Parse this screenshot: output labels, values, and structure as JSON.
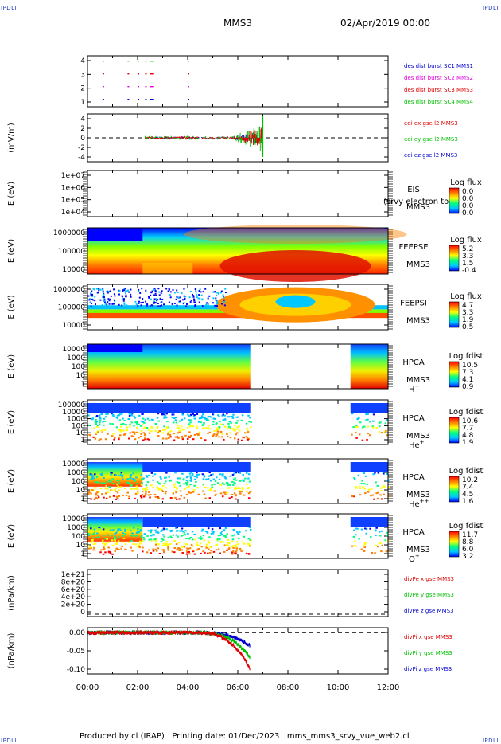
{
  "corners": {
    "tl": "IPDLI",
    "tr": "IPDLI",
    "bl": "IPDLI",
    "br": "IPDLI"
  },
  "header": {
    "spacecraft": "MMS3",
    "date": "02/Apr/2019 00:00"
  },
  "footer": {
    "text": "Produced by cl (IRAP)   Printing date: 01/Dec/2023   mms_mms3_srvy_vue_web2.cl"
  },
  "colors": {
    "red": "#e00000",
    "green": "#00c000",
    "blue": "#0000d0",
    "magenta": "#e000e0",
    "colorbar": [
      "#0000ff",
      "#00c8ff",
      "#00ff80",
      "#ffff00",
      "#ff8000",
      "#ff0000"
    ]
  },
  "chart_data": [
    {
      "id": "burst",
      "type": "scatter",
      "x_ticks": [
        "00:00",
        "02:00",
        "04:00",
        "06:00",
        "08:00",
        "10:00",
        "12:00"
      ],
      "yticks": [
        "4",
        "3",
        "2",
        "1"
      ],
      "series": [
        {
          "name": "des dist burst SC1 MMS1",
          "color": "#0000d0"
        },
        {
          "name": "des dist burst SC2 MMS2",
          "color": "#e000e0"
        },
        {
          "name": "des dist burst SC3 MMS3",
          "color": "#e00000"
        },
        {
          "name": "des dist burst SC4 MMS4",
          "color": "#00c000"
        }
      ],
      "burst_hours": [
        0.6,
        1.6,
        2.0,
        2.3,
        2.5,
        4.0
      ]
    },
    {
      "id": "edi",
      "type": "line",
      "ylabel": "(mV/m)",
      "yticks": [
        "4",
        "2",
        "0",
        "-2",
        "-4"
      ],
      "ylim": [
        -5,
        5
      ],
      "series": [
        {
          "name": "edi ex gse l2 MMS3",
          "color": "#e00000"
        },
        {
          "name": "edi ey gse l2 MMS3",
          "color": "#00c000"
        },
        {
          "name": "edi ez gse l2 MMS3",
          "color": "#0000d0"
        }
      ]
    },
    {
      "id": "eis",
      "type": "heatmap",
      "ylabel": "E (eV)",
      "yticks": [
        "1e+07",
        "1e+06",
        "1e+05",
        "1e+04"
      ],
      "side": [
        "EIS",
        "MMS3"
      ],
      "overlap_text": "(srvy electron to",
      "cbar_title": "Log flux",
      "cbar_ticks": [
        "0.0",
        "0.0",
        "0.0",
        "0.0"
      ]
    },
    {
      "id": "feepse",
      "type": "heatmap",
      "ylabel": "E (eV)",
      "yticks": [
        "1000000",
        "100000",
        "10000"
      ],
      "side": [
        "FEEPSE",
        "MMS3"
      ],
      "cbar_title": "Log flux",
      "cbar_ticks": [
        "5.2",
        "3.3",
        "1.5",
        "-0.4"
      ]
    },
    {
      "id": "feepsi",
      "type": "heatmap",
      "ylabel": "E (eV)",
      "yticks": [
        "1000000",
        "100000",
        "10000"
      ],
      "side": [
        "FEEPSI",
        "MMS3"
      ],
      "cbar_title": "Log flux",
      "cbar_ticks": [
        "4.7",
        "3.3",
        "1.9",
        "0.5"
      ]
    },
    {
      "id": "hpca_h",
      "type": "heatmap",
      "ylabel": "E (eV)",
      "yticks": [
        "10000",
        "1000",
        "100",
        "10",
        "1"
      ],
      "side": [
        "HPCA",
        "MMS3"
      ],
      "species": "H",
      "species_sup": "+",
      "cbar_title": "Log fdist",
      "cbar_ticks": [
        "10.5",
        "7.3",
        "4.1",
        "0.9"
      ]
    },
    {
      "id": "hpca_he",
      "type": "heatmap",
      "ylabel": "E (eV)",
      "yticks": [
        "100000",
        "10000",
        "1000",
        "100",
        "10",
        "1"
      ],
      "side": [
        "HPCA",
        "MMS3"
      ],
      "species": "He",
      "species_sup": "+",
      "cbar_title": "Log fdist",
      "cbar_ticks": [
        "10.6",
        "7.7",
        "4.8",
        "1.9"
      ]
    },
    {
      "id": "hpca_he2",
      "type": "heatmap",
      "ylabel": "E (eV)",
      "yticks": [
        "10000",
        "1000",
        "100",
        "10",
        "1"
      ],
      "side": [
        "HPCA",
        "MMS3"
      ],
      "species": "He",
      "species_sup": "++",
      "cbar_title": "Log fdist",
      "cbar_ticks": [
        "10.2",
        "7.4",
        "4.5",
        "1.6"
      ]
    },
    {
      "id": "hpca_o",
      "type": "heatmap",
      "ylabel": "E (eV)",
      "yticks": [
        "10000",
        "1000",
        "100",
        "10",
        "1"
      ],
      "side": [
        "HPCA",
        "MMS3"
      ],
      "species": "O",
      "species_sup": "+",
      "cbar_title": "Log fdist",
      "cbar_ticks": [
        "11.7",
        "8.8",
        "6.0",
        "3.2"
      ]
    },
    {
      "id": "divpe",
      "type": "line",
      "ylabel": "(nPa/km)",
      "yticks": [
        "1e+21",
        "8e+20",
        "6e+20",
        "4e+20",
        "2e+20",
        "0"
      ],
      "series": [
        {
          "name": "divPe x gse MMS3",
          "color": "#e00000"
        },
        {
          "name": "divPe y gse MMS3",
          "color": "#00c000"
        },
        {
          "name": "divPe z gse MMS3",
          "color": "#0000d0"
        }
      ]
    },
    {
      "id": "divpi",
      "type": "line",
      "ylabel": "(nPa/km)",
      "yticks": [
        "0.00",
        "-0.05",
        "-0.10"
      ],
      "ylim": [
        -0.125,
        0.015
      ],
      "series": [
        {
          "name": "divPi x gse MMS3",
          "color": "#e00000"
        },
        {
          "name": "divPi y gse MMS3",
          "color": "#00c000"
        },
        {
          "name": "divPi z gse MMS3",
          "color": "#0000d0"
        }
      ]
    }
  ]
}
